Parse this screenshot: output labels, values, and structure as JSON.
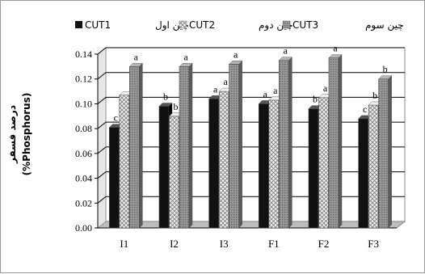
{
  "chart_data": {
    "type": "bar",
    "title": "",
    "xlabel": "",
    "ylabel_fa": "درصد فسفر",
    "ylabel_en": "(%Phosphorus)",
    "ylim": [
      0,
      0.14
    ],
    "ytick_labels": [
      "0.00",
      "0.02",
      "0.04",
      "0.06",
      "0.08",
      "0.10",
      "0.12",
      "0.14"
    ],
    "categories": [
      "I1",
      "I2",
      "I3",
      "F1",
      "F2",
      "F3"
    ],
    "series": [
      {
        "name": "CUT1",
        "legend_fa": "چین اول",
        "color": "#111111",
        "values": [
          0.081,
          0.098,
          0.104,
          0.1,
          0.096,
          0.088
        ],
        "sig": [
          "c",
          "b",
          "a",
          "a",
          "b",
          "c"
        ]
      },
      {
        "name": "CUT2",
        "legend_fa": "چین دوم",
        "color": "#d9d9d9",
        "values": [
          0.107,
          0.09,
          0.11,
          0.103,
          0.105,
          0.099
        ],
        "sig": [
          "",
          "b",
          "a",
          "a",
          "a",
          "b"
        ]
      },
      {
        "name": "CUT3",
        "legend_fa": "چین سوم",
        "color": "#8c8c8c",
        "values": [
          0.13,
          0.13,
          0.132,
          0.135,
          0.137,
          0.12
        ],
        "sig": [
          "a",
          "a",
          "a",
          "a",
          "a",
          "b"
        ]
      }
    ],
    "grid": true,
    "legend_position": "top"
  }
}
